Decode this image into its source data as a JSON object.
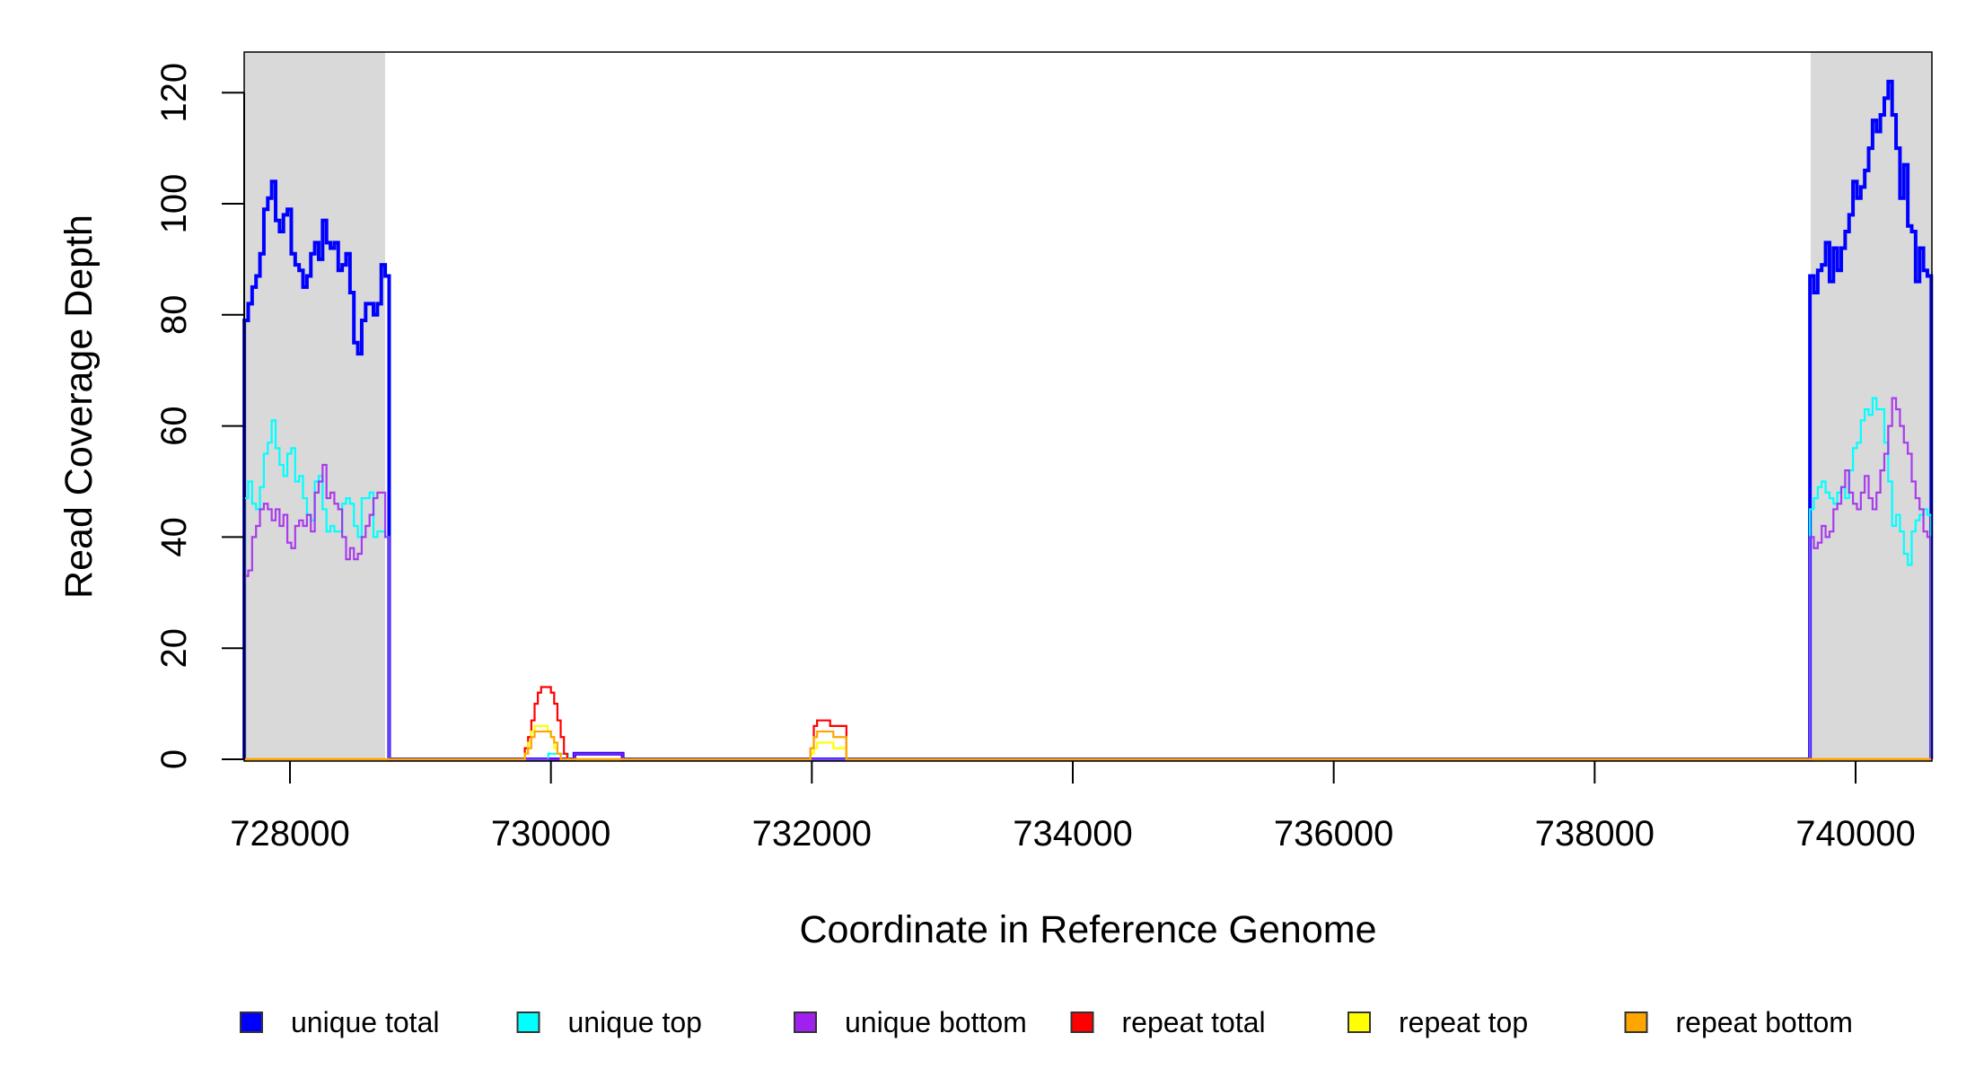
{
  "chart_data": {
    "type": "line",
    "title": "",
    "xlabel": "Coordinate in Reference Genome",
    "ylabel": "Read Coverage Depth",
    "xlim": [
      727649,
      740585
    ],
    "ylim": [
      0,
      127
    ],
    "x_ticks": [
      728000,
      730000,
      732000,
      734000,
      736000,
      738000,
      740000
    ],
    "x_tick_labels": [
      "728000",
      "730000",
      "732000",
      "734000",
      "736000",
      "738000",
      "740000"
    ],
    "y_ticks": [
      0,
      20,
      40,
      60,
      80,
      100,
      120
    ],
    "y_tick_labels": [
      "0",
      "20",
      "40",
      "60",
      "80",
      "100",
      "120"
    ],
    "grid": false,
    "shaded_regions": [
      [
        727649,
        728729
      ],
      [
        739656,
        740585
      ]
    ],
    "shade_color": "#d9d9d9",
    "legend_position": "bottom",
    "series": [
      {
        "name": "unique total",
        "color": "#0000ff",
        "segments": [
          {
            "start": 727650,
            "step": 30,
            "values": [
              79,
              82,
              85,
              87,
              91,
              99,
              101,
              104,
              97,
              95,
              98,
              99,
              91,
              89,
              88,
              85,
              87,
              91,
              93,
              90,
              97,
              93,
              92,
              93,
              88,
              89,
              91,
              84,
              75,
              73,
              79,
              82,
              82,
              80,
              82,
              89,
              87
            ]
          },
          {
            "start": 730180,
            "step": 370,
            "values": [
              1
            ]
          },
          {
            "start": 739650,
            "step": 30,
            "values": [
              87,
              84,
              88,
              89,
              93,
              86,
              92,
              88,
              92,
              95,
              98,
              104,
              101,
              103,
              106,
              110,
              115,
              113,
              116,
              119,
              122,
              116,
              110,
              101,
              107,
              96,
              95,
              86,
              92,
              88,
              87
            ]
          }
        ]
      },
      {
        "name": "unique top",
        "color": "#00ffff",
        "segments": [
          {
            "start": 727650,
            "step": 30,
            "values": [
              47,
              50,
              46,
              45,
              49,
              55,
              57,
              61,
              56,
              53,
              51,
              55,
              56,
              50,
              51,
              47,
              44,
              43,
              50,
              51,
              45,
              41,
              42,
              41,
              41,
              46,
              47,
              46,
              42,
              40,
              47,
              47,
              48,
              40,
              41,
              41,
              40
            ]
          },
          {
            "start": 729980,
            "step": 150,
            "values": [
              1
            ]
          },
          {
            "start": 739650,
            "step": 30,
            "values": [
              45,
              47,
              49,
              50,
              48,
              47,
              46,
              48,
              49,
              47,
              52,
              56,
              57,
              61,
              63,
              62,
              65,
              63,
              63,
              57,
              50,
              42,
              44,
              41,
              37,
              35,
              41,
              43,
              44,
              45,
              44
            ]
          }
        ]
      },
      {
        "name": "unique bottom",
        "color": "#a020f0",
        "segments": [
          {
            "start": 727650,
            "step": 30,
            "values": [
              33,
              34,
              40,
              42,
              45,
              46,
              45,
              43,
              45,
              42,
              44,
              39,
              38,
              42,
              43,
              42,
              44,
              41,
              48,
              50,
              53,
              47,
              48,
              46,
              45,
              40,
              36,
              38,
              36,
              37,
              40,
              42,
              44,
              47,
              48,
              48,
              40
            ]
          },
          {
            "start": 730180,
            "step": 370,
            "values": [
              1
            ]
          },
          {
            "start": 739650,
            "step": 30,
            "values": [
              40,
              38,
              39,
              42,
              40,
              41,
              45,
              46,
              49,
              52,
              48,
              46,
              45,
              48,
              51,
              47,
              45,
              48,
              52,
              55,
              60,
              65,
              63,
              60,
              57,
              55,
              50,
              47,
              45,
              41,
              40
            ]
          }
        ]
      },
      {
        "name": "repeat total",
        "color": "#ff0000",
        "segments": [
          {
            "start": 729800,
            "step": 25,
            "values": [
              2,
              4,
              7,
              10,
              12,
              13,
              13,
              13,
              12,
              10,
              7,
              4,
              1
            ]
          },
          {
            "start": 731990,
            "step": 25,
            "values": [
              2,
              6,
              7,
              7,
              7,
              7,
              6,
              6,
              6,
              6,
              6
            ]
          }
        ]
      },
      {
        "name": "repeat top",
        "color": "#ffff00",
        "segments": [
          {
            "start": 729800,
            "step": 25,
            "values": [
              1,
              3,
              5,
              6,
              6,
              6,
              6,
              5,
              4,
              2,
              1,
              0,
              0
            ]
          },
          {
            "start": 731990,
            "step": 25,
            "values": [
              1,
              2,
              3,
              3,
              3,
              3,
              3,
              2,
              2,
              2,
              2
            ]
          }
        ]
      },
      {
        "name": "repeat bottom",
        "color": "#ffa500",
        "segments": [
          {
            "start": 729800,
            "step": 25,
            "values": [
              1,
              2,
              4,
              5,
              5,
              5,
              5,
              5,
              4,
              3,
              1,
              0,
              0
            ]
          },
          {
            "start": 731990,
            "step": 25,
            "values": [
              2,
              4,
              5,
              5,
              5,
              5,
              5,
              4,
              4,
              4,
              4
            ]
          }
        ]
      }
    ]
  }
}
